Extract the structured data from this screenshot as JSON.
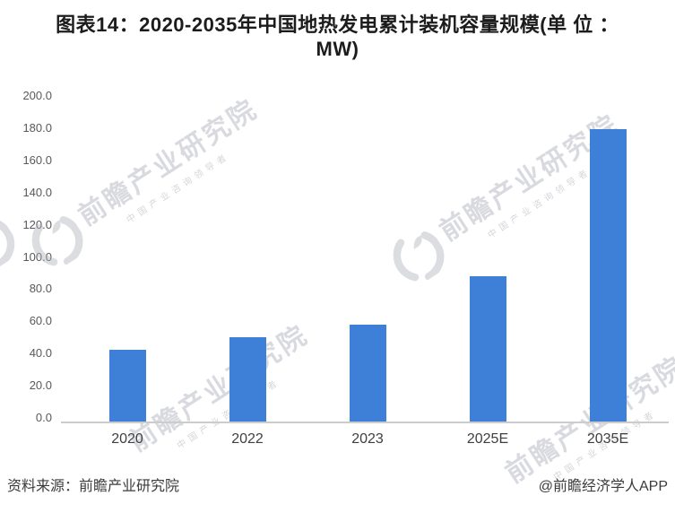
{
  "title": {
    "line1": "图表14：2020-2035年中国地热发电累计装机容量规模(单 位 ：",
    "line2": "MW)"
  },
  "footer": {
    "source": "资料来源：前瞻产业研究院",
    "credit": "@前瞻经济学人APP"
  },
  "watermark": {
    "text": "前瞻产业研究院",
    "subtext": "中国产业咨询领导者",
    "logo": "qianzhan-swoosh-logo"
  },
  "colors": {
    "bar": "#3E80D8",
    "axis": "#CCCCCC",
    "watermark": "#AAAEB8",
    "title_text": "#1C1C1C",
    "tick_text": "#595959"
  },
  "chart_data": {
    "type": "bar",
    "title": "图表14：2020-2035年中国地热发电累计装机容量规模(单位：MW)",
    "categories": [
      "2020",
      "2022",
      "2023",
      "2025E",
      "2035E"
    ],
    "values": [
      45,
      53,
      61,
      91,
      182
    ],
    "unit": "MW",
    "xlabel": "",
    "ylabel": "",
    "ylim": [
      0,
      200
    ],
    "ytick_step": 20,
    "ytick_labels": [
      "200.0",
      "180.0",
      "160.0",
      "140.0",
      "120.0",
      "100.0",
      "80.0",
      "60.0",
      "40.0",
      "20.0",
      "0.0"
    ],
    "grid": false,
    "legend": false,
    "bar_color": "#3E80D8"
  }
}
